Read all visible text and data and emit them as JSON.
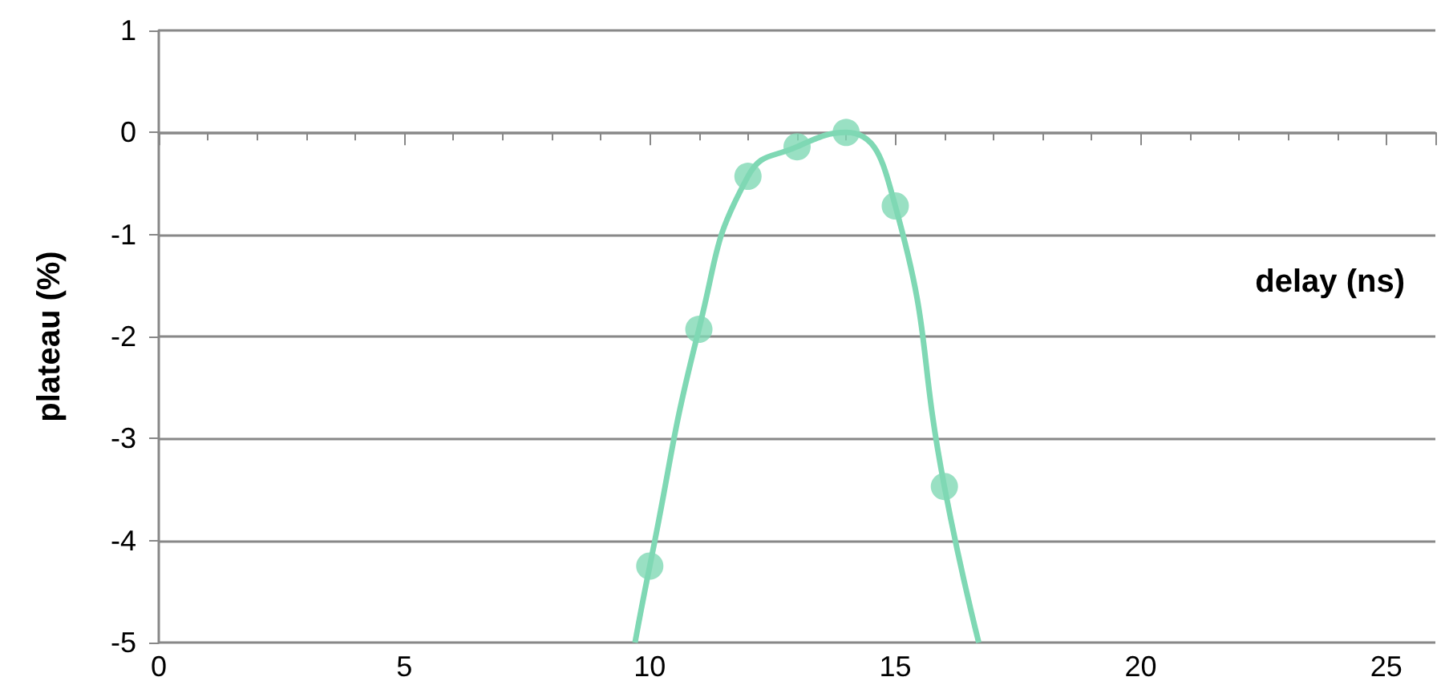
{
  "chart_data": {
    "type": "scatter",
    "xlabel": "delay (ns)",
    "ylabel": "plateau (%)",
    "xlim": [
      0,
      26
    ],
    "xticks": [
      0,
      5,
      10,
      15,
      20,
      25
    ],
    "ylim": [
      -5,
      1
    ],
    "yticks": [
      -5,
      -4,
      -3,
      -2,
      -1,
      0,
      1
    ],
    "grid": "y",
    "marker": "circle",
    "series": [
      {
        "color": "#7fd8b4",
        "x": [
          10,
          11,
          12,
          13,
          14,
          15,
          16
        ],
        "values": [
          -4.25,
          -1.93,
          -0.43,
          -0.14,
          0,
          -0.72,
          -3.47
        ]
      },
      {
        "type": "line",
        "color": "#7fd8b4",
        "marker": "none",
        "x": [
          9.7,
          10,
          11,
          12,
          13,
          14,
          15,
          16,
          16.7
        ],
        "values": [
          -5,
          -4.25,
          -1.93,
          -0.43,
          -0.14,
          0,
          -0.72,
          -3.47,
          -5
        ]
      }
    ]
  }
}
